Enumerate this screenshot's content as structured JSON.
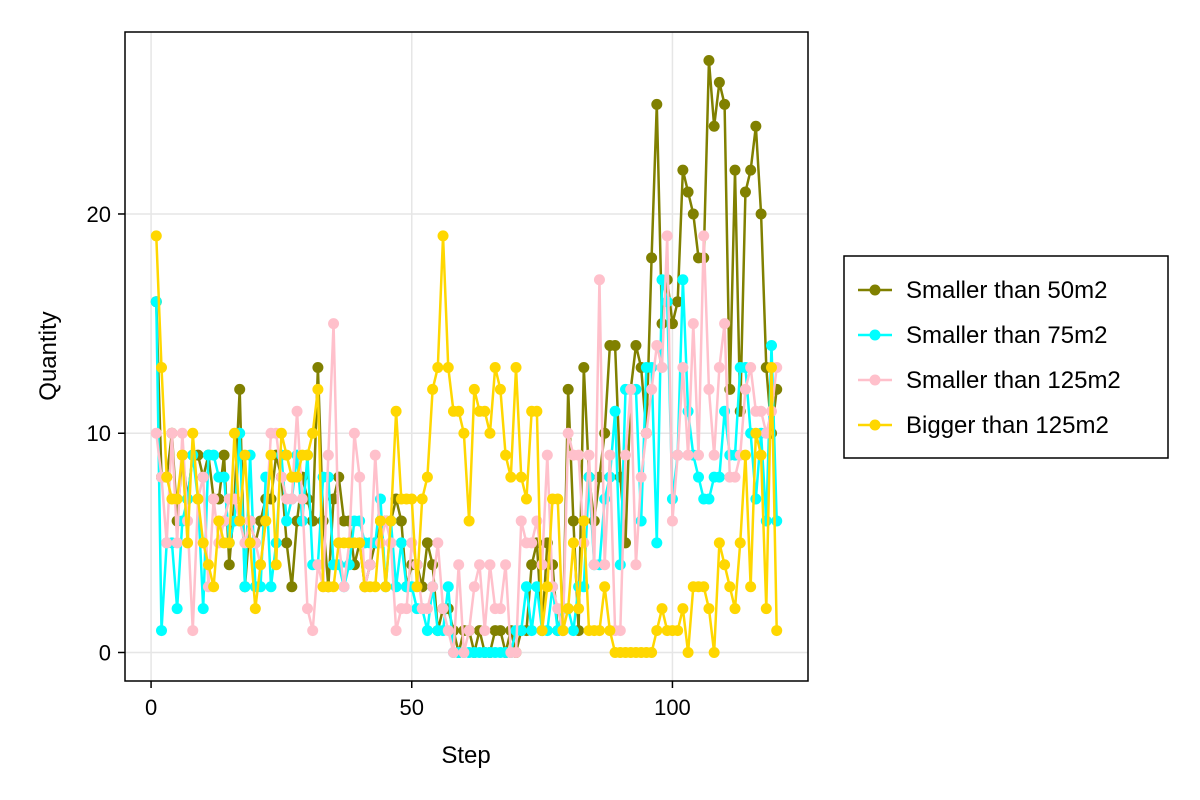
{
  "chart_data": {
    "type": "line",
    "xlabel": "Step",
    "ylabel": "Quantity",
    "xlim": [
      -5,
      126
    ],
    "ylim": [
      -1.3,
      28.3
    ],
    "xticks": [
      0,
      50,
      100
    ],
    "yticks": [
      0,
      10,
      20
    ],
    "grid": true,
    "legend_position": "right",
    "x": [
      1,
      2,
      3,
      4,
      5,
      6,
      7,
      8,
      9,
      10,
      11,
      12,
      13,
      14,
      15,
      16,
      17,
      18,
      19,
      20,
      21,
      22,
      23,
      24,
      25,
      26,
      27,
      28,
      29,
      30,
      31,
      32,
      33,
      34,
      35,
      36,
      37,
      38,
      39,
      40,
      41,
      42,
      43,
      44,
      45,
      46,
      47,
      48,
      49,
      50,
      51,
      52,
      53,
      54,
      55,
      56,
      57,
      58,
      59,
      60,
      61,
      62,
      63,
      64,
      65,
      66,
      67,
      68,
      69,
      70,
      71,
      72,
      73,
      74,
      75,
      76,
      77,
      78,
      79,
      80,
      81,
      82,
      83,
      84,
      85,
      86,
      87,
      88,
      89,
      90,
      91,
      92,
      93,
      94,
      95,
      96,
      97,
      98,
      99,
      100,
      101,
      102,
      103,
      104,
      105,
      106,
      107,
      108,
      109,
      110,
      111,
      112,
      113,
      114,
      115,
      116,
      117,
      118,
      119,
      120
    ],
    "series": [
      {
        "name": "Smaller than 50m2",
        "color": "#808000",
        "values": [
          16,
          8,
          8,
          10,
          6,
          9,
          7,
          9,
          9,
          8,
          9,
          7,
          7,
          9,
          4,
          7,
          12,
          3,
          6,
          5,
          6,
          7,
          7,
          9,
          8,
          5,
          3,
          6,
          8,
          7,
          6,
          13,
          6,
          3,
          7,
          8,
          6,
          6,
          4,
          5,
          3,
          4,
          5,
          6,
          6,
          6,
          7,
          6,
          3,
          4,
          4,
          3,
          5,
          4,
          1,
          2,
          2,
          1,
          0,
          1,
          1,
          0,
          1,
          0,
          0,
          1,
          1,
          0,
          1,
          0,
          1,
          1,
          4,
          5,
          1,
          5,
          4,
          1,
          1,
          12,
          6,
          1,
          13,
          8,
          6,
          8,
          10,
          14,
          14,
          8,
          5,
          12,
          14,
          13,
          10,
          18,
          25,
          15,
          17,
          15,
          16,
          22,
          21,
          20,
          18,
          18,
          27,
          24,
          26,
          25,
          12,
          22,
          11,
          21,
          22,
          24,
          20,
          13,
          10,
          12
        ]
      },
      {
        "name": "Smaller than 75m2",
        "color": "#00ffff",
        "values": [
          16,
          1,
          5,
          5,
          2,
          6,
          7,
          9,
          7,
          2,
          9,
          9,
          8,
          8,
          5,
          6,
          10,
          3,
          9,
          3,
          3,
          8,
          3,
          5,
          9,
          6,
          7,
          9,
          6,
          9,
          4,
          4,
          8,
          8,
          4,
          4,
          3,
          4,
          6,
          6,
          5,
          5,
          5,
          7,
          3,
          6,
          3,
          5,
          3,
          3,
          2,
          2,
          1,
          3,
          1,
          1,
          3,
          0,
          0,
          0,
          0,
          0,
          0,
          0,
          0,
          0,
          0,
          0,
          0,
          1,
          1,
          3,
          1,
          3,
          1,
          1,
          3,
          1,
          2,
          2,
          1,
          3,
          3,
          8,
          4,
          4,
          7,
          8,
          11,
          4,
          12,
          12,
          12,
          6,
          13,
          13,
          5,
          17,
          16,
          7,
          9,
          17,
          11,
          9,
          8,
          7,
          7,
          8,
          8,
          11,
          9,
          9,
          13,
          13,
          10,
          7,
          10,
          6,
          14,
          6
        ]
      },
      {
        "name": "Smaller than 125m2",
        "color": "#ffc0cb",
        "values": [
          10,
          8,
          5,
          10,
          5,
          10,
          6,
          1,
          7,
          8,
          3,
          7,
          5,
          6,
          7,
          7,
          6,
          5,
          6,
          5,
          4,
          6,
          10,
          10,
          8,
          7,
          7,
          11,
          7,
          2,
          1,
          4,
          3,
          9,
          15,
          5,
          3,
          5,
          10,
          8,
          3,
          4,
          9,
          5,
          6,
          5,
          1,
          2,
          2,
          5,
          4,
          2,
          2,
          3,
          5,
          2,
          1,
          0,
          4,
          0,
          1,
          3,
          4,
          1,
          4,
          2,
          2,
          4,
          0,
          0,
          6,
          5,
          5,
          6,
          4,
          9,
          3,
          2,
          1,
          10,
          9,
          9,
          5,
          9,
          4,
          17,
          4,
          9,
          1,
          1,
          9,
          12,
          4,
          8,
          10,
          12,
          14,
          13,
          19,
          6,
          9,
          13,
          9,
          15,
          9,
          19,
          12,
          9,
          13,
          15,
          8,
          8,
          9,
          12,
          13,
          11,
          11,
          10,
          11,
          13
        ]
      },
      {
        "name": "Bigger than 125m2",
        "color": "#ffd700",
        "values": [
          19,
          13,
          8,
          7,
          7,
          9,
          5,
          10,
          7,
          5,
          4,
          3,
          6,
          5,
          5,
          10,
          6,
          9,
          5,
          2,
          4,
          6,
          9,
          4,
          10,
          9,
          8,
          8,
          9,
          9,
          10,
          12,
          3,
          3,
          3,
          5,
          5,
          5,
          5,
          5,
          3,
          3,
          3,
          6,
          3,
          6,
          11,
          7,
          7,
          7,
          3,
          7,
          8,
          12,
          13,
          19,
          13,
          11,
          11,
          10,
          6,
          12,
          11,
          11,
          10,
          13,
          12,
          9,
          8,
          13,
          8,
          7,
          11,
          11,
          1,
          3,
          7,
          7,
          1,
          2,
          5,
          2,
          6,
          1,
          1,
          1,
          3,
          1,
          0,
          0,
          0,
          0,
          0,
          0,
          0,
          0,
          1,
          2,
          1,
          1,
          1,
          2,
          0,
          3,
          3,
          3,
          2,
          0,
          5,
          4,
          3,
          2,
          5,
          9,
          3,
          10,
          9,
          2,
          13,
          1
        ]
      }
    ]
  }
}
